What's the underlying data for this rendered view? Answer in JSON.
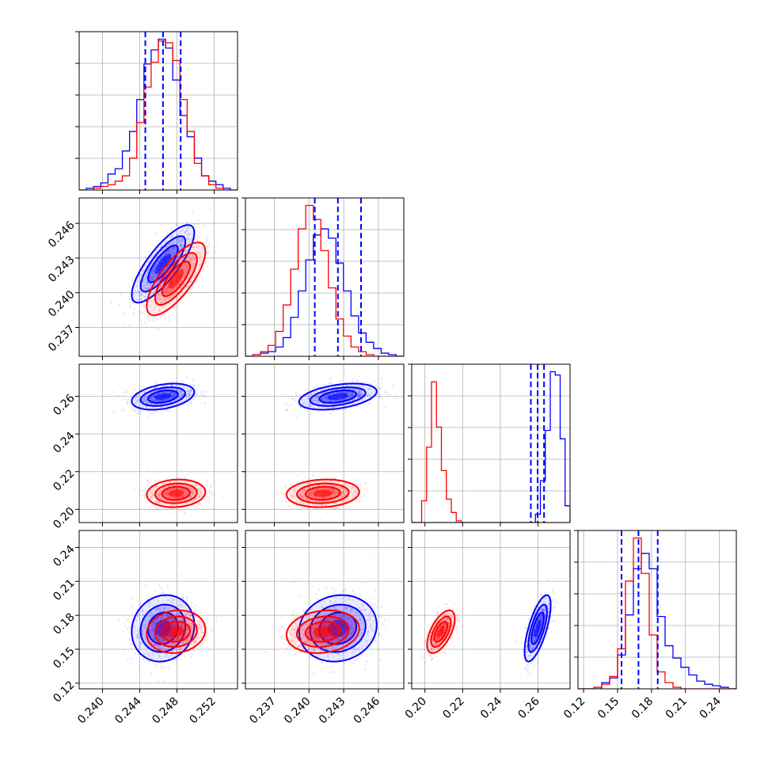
{
  "chart_data": {
    "type": "scatter",
    "title": "",
    "colors": {
      "blue": "#0000ff",
      "red": "#ff0000"
    },
    "grid": true,
    "parameters": [
      {
        "range": [
          0.2375,
          0.2545
        ],
        "ticks": [
          "0.240",
          "0.244",
          "0.248",
          "0.252"
        ],
        "tick_values": [
          0.24,
          0.244,
          0.248,
          0.252
        ]
      },
      {
        "range": [
          0.2345,
          0.2482
        ],
        "ticks": [
          "0.237",
          "0.240",
          "0.243",
          "0.246"
        ],
        "tick_values": [
          0.237,
          0.24,
          0.243,
          0.246
        ]
      },
      {
        "range": [
          0.193,
          0.277
        ],
        "ticks": [
          "0.20",
          "0.22",
          "0.24",
          "0.26"
        ],
        "tick_values": [
          0.2,
          0.22,
          0.24,
          0.26
        ]
      },
      {
        "range": [
          0.115,
          0.255
        ],
        "ticks": [
          "0.12",
          "0.15",
          "0.18",
          "0.21",
          "0.24"
        ],
        "tick_values": [
          0.12,
          0.15,
          0.18,
          0.21,
          0.24
        ]
      }
    ],
    "series": [
      {
        "color": "#0000ff",
        "means": [
          0.2465,
          0.2425,
          0.2598,
          0.1685
        ],
        "sigmas": [
          0.0016,
          0.0016,
          0.0033,
          0.014
        ],
        "correlations": {
          "0-1": 0.8,
          "0-2": 0.35,
          "0-3": 0.1,
          "1-2": 0.4,
          "1-3": 0.1,
          "2-3": 0.7
        },
        "quantiles": [
          [
            0.2446,
            0.2465,
            0.2484
          ],
          [
            0.2405,
            0.2425,
            0.2445
          ],
          [
            0.2562,
            0.2598,
            0.2632
          ],
          [
            0.1535,
            0.1685,
            0.1855
          ]
        ],
        "histograms": [
          {
            "edges_range": [
              0.2375,
              0.2545
            ],
            "counts": [
              0,
              1,
              2,
              4,
              9,
              12,
              22,
              33,
              51,
              71,
              79,
              85,
              80,
              62,
              42,
              30,
              18,
              8,
              5,
              3,
              1,
              0
            ]
          },
          {
            "edges_range": [
              0.2345,
              0.2482
            ],
            "counts": [
              0,
              1,
              2,
              3,
              6,
              12,
              25,
              42,
              62,
              78,
              82,
              76,
              60,
              42,
              26,
              15,
              9,
              5,
              2,
              1,
              0
            ]
          },
          {
            "edges_range": [
              0.193,
              0.277
            ],
            "counts": [
              0,
              0,
              0,
              0,
              0,
              0,
              0,
              0,
              0,
              0,
              0,
              0,
              0,
              0,
              0,
              0,
              0,
              0,
              0,
              0,
              0,
              0,
              0,
              0,
              0,
              5,
              25,
              55,
              90,
              88,
              50,
              10
            ]
          },
          {
            "edges_range": [
              0.115,
              0.255
            ],
            "counts": [
              0,
              0,
              0,
              4,
              7,
              22,
              48,
              78,
              88,
              78,
              47,
              28,
              20,
              14,
              9,
              5,
              3,
              2,
              1,
              0
            ]
          }
        ]
      },
      {
        "color": "#ff0000",
        "means": [
          0.2479,
          0.2412,
          0.2085,
          0.1655
        ],
        "sigmas": [
          0.0015,
          0.0015,
          0.0035,
          0.009
        ],
        "correlations": {
          "0-1": 0.75,
          "0-2": 0.1,
          "0-3": 0.1,
          "1-2": 0.1,
          "1-3": 0.15,
          "2-3": 0.6
        },
        "histograms": [
          {
            "edges_range": [
              0.2375,
              0.2545
            ],
            "counts": [
              0,
              0,
              1,
              2,
              3,
              5,
              8,
              18,
              38,
              58,
              72,
              84,
              83,
              73,
              51,
              33,
              15,
              8,
              3,
              1,
              0,
              0
            ]
          },
          {
            "edges_range": [
              0.2345,
              0.2482
            ],
            "counts": [
              0,
              1,
              3,
              7,
              16,
              33,
              56,
              82,
              97,
              88,
              68,
              44,
              24,
              13,
              6,
              3,
              1,
              0,
              0,
              0,
              0
            ]
          },
          {
            "edges_range": [
              0.193,
              0.277
            ],
            "counts": [
              0,
              0,
              13,
              45,
              84,
              57,
              31,
              14,
              6,
              1,
              0,
              0,
              0,
              0,
              0,
              0,
              0,
              0,
              0,
              0,
              0,
              0,
              0,
              0,
              0,
              0,
              0,
              0,
              0,
              0,
              0,
              0
            ]
          },
          {
            "edges_range": [
              0.115,
              0.255
            ],
            "counts": [
              0,
              0,
              1,
              3,
              8,
              26,
              70,
              98,
              75,
              35,
              11,
              4,
              1,
              0,
              0,
              0,
              0,
              0,
              0,
              0
            ]
          }
        ]
      }
    ]
  }
}
